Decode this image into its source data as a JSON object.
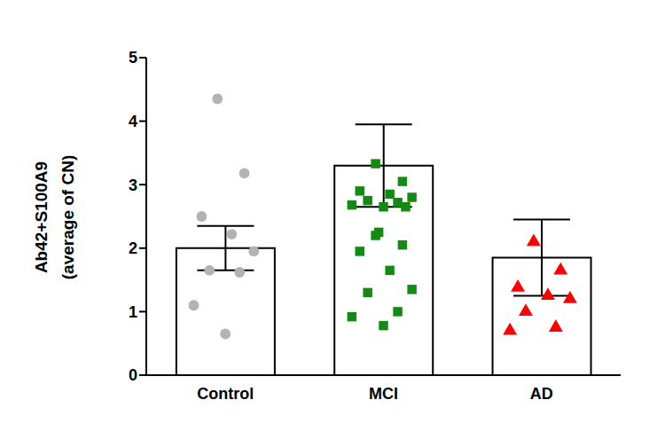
{
  "chart_data": {
    "type": "bar",
    "y_label": [
      "Ab42+S100A9",
      "(average of CN)"
    ],
    "categories": [
      "Control",
      "MCI",
      "AD"
    ],
    "values": [
      2.0,
      3.3,
      1.85
    ],
    "error": [
      0.35,
      0.65,
      0.6
    ],
    "color": "#ffffff",
    "ylim": [
      0,
      5
    ],
    "yticks": [
      0,
      1,
      2,
      3,
      4,
      5
    ],
    "grid": false,
    "points": [
      {
        "color": "#b3b3b3",
        "marker": "circle",
        "values": [
          4.35,
          3.18,
          2.5,
          2.22,
          1.95,
          1.65,
          1.62,
          1.1,
          0.65
        ]
      },
      {
        "color": "#138a13",
        "marker": "square",
        "values": [
          3.33,
          3.05,
          2.9,
          2.85,
          2.8,
          2.75,
          2.72,
          2.68,
          2.65,
          2.65,
          2.25,
          2.2,
          2.05,
          1.95,
          1.65,
          1.35,
          1.3,
          1.0,
          0.92,
          0.78
        ]
      },
      {
        "color": "#ff0000",
        "marker": "triangle",
        "values": [
          2.1,
          1.65,
          1.38,
          1.25,
          1.2,
          1.0,
          0.75,
          0.7
        ]
      }
    ]
  }
}
